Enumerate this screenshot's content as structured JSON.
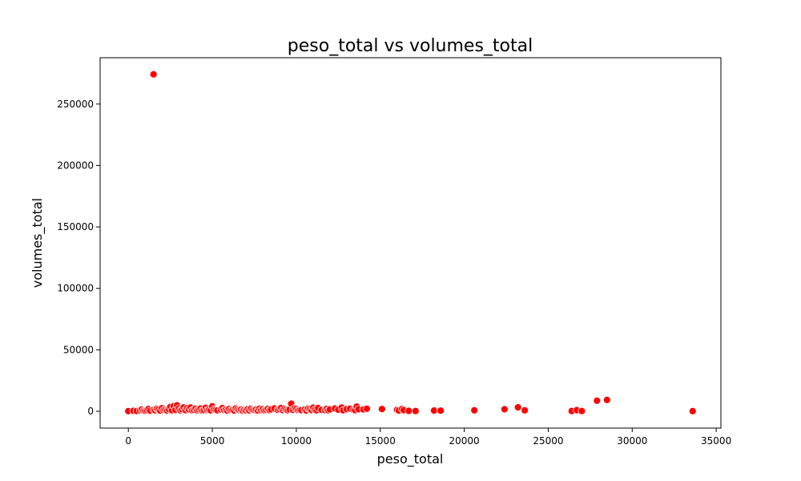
{
  "chart_data": {
    "type": "scatter",
    "title": "peso_total vs volumes_total",
    "xlabel": "peso_total",
    "ylabel": "volumes_total",
    "xlim": [
      -1680,
      35280
    ],
    "ylim": [
      -13700,
      287700
    ],
    "xticks": [
      0,
      5000,
      10000,
      15000,
      20000,
      25000,
      30000,
      35000
    ],
    "yticks": [
      0,
      50000,
      100000,
      150000,
      200000,
      250000
    ],
    "grid": false,
    "legend": "none",
    "marker_color": "#ff0000",
    "marker_edge_color": "#ffffff",
    "series": [
      {
        "x": [
          0,
          300,
          500,
          700,
          800,
          900,
          1000,
          1100,
          1200,
          1300,
          1500,
          1600,
          1700,
          1800,
          1900,
          2000,
          2100,
          2200,
          2300,
          2400,
          2500,
          2600,
          2700,
          2800,
          2900,
          3000,
          3100,
          3200,
          3300,
          3400,
          3500,
          3600,
          3700,
          3800,
          3900,
          4000,
          4100,
          4200,
          4300,
          4400,
          4500,
          4600,
          4700,
          4800,
          4900,
          5000,
          5100,
          5200,
          5300,
          5500,
          5600,
          5700,
          5800,
          5900,
          6000,
          6100,
          6200,
          6300,
          6400,
          6500,
          6600,
          6700,
          6800,
          6900,
          7000,
          7100,
          7200,
          7300,
          7400,
          7500,
          7600,
          7700,
          7800,
          7900,
          8000,
          8100,
          8200,
          8300,
          8400,
          8500,
          8700,
          8900,
          9000,
          9100,
          9200,
          9300,
          9400,
          9500,
          9600,
          9700,
          9800,
          9900,
          10000,
          10100,
          10200,
          10300,
          10500,
          10600,
          10700,
          10800,
          10900,
          11000,
          11100,
          11200,
          11300,
          11500,
          11700,
          11800,
          11900,
          12000,
          12300,
          12500,
          12700,
          12800,
          13000,
          13200,
          13400,
          13500,
          13600,
          13700,
          14000,
          14200,
          15100,
          16000,
          16100,
          16300,
          16400,
          16700,
          17100,
          18200,
          18600,
          20600,
          22400,
          23200,
          23600,
          26400,
          26700,
          27000,
          27900,
          28500,
          33600,
          1500
        ],
        "y": [
          100,
          300,
          200,
          800,
          1500,
          600,
          300,
          900,
          1800,
          400,
          1200,
          800,
          2000,
          1500,
          500,
          2500,
          900,
          1200,
          600,
          1700,
          3500,
          800,
          4200,
          1100,
          4800,
          2200,
          700,
          1600,
          3100,
          900,
          2500,
          1400,
          3000,
          700,
          1200,
          2000,
          800,
          1500,
          2200,
          600,
          1000,
          2800,
          900,
          1300,
          700,
          4000,
          1600,
          1100,
          800,
          1400,
          2600,
          900,
          1200,
          500,
          1800,
          700,
          1000,
          600,
          2400,
          1500,
          900,
          1300,
          400,
          1100,
          800,
          1600,
          700,
          2000,
          1200,
          900,
          1400,
          600,
          2100,
          1000,
          1700,
          800,
          1200,
          1900,
          900,
          1500,
          2300,
          1100,
          1800,
          2700,
          900,
          2000,
          1300,
          800,
          1500,
          6100,
          1200,
          2500,
          1800,
          700,
          1000,
          900,
          1400,
          600,
          2200,
          1700,
          1000,
          2900,
          1300,
          800,
          2600,
          1100,
          900,
          1900,
          700,
          1500,
          2200,
          1300,
          3000,
          800,
          1700,
          2100,
          1200,
          900,
          3800,
          1600,
          1500,
          2100,
          1800,
          1200,
          600,
          1800,
          900,
          300,
          200,
          600,
          500,
          800,
          1600,
          3200,
          800,
          200,
          900,
          200,
          8600,
          9200,
          100,
          274200
        ]
      }
    ]
  }
}
